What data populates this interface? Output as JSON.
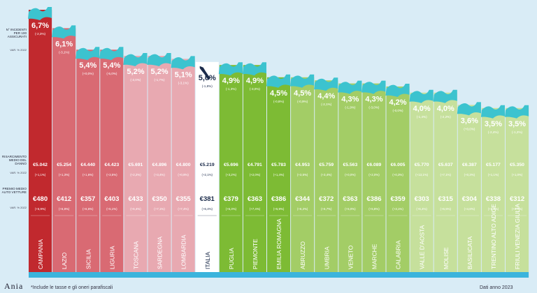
{
  "chart_data": {
    "type": "bar",
    "title": "",
    "xlabel": "",
    "ylabel": "",
    "row_labels": {
      "value": "N° INCIDENTI PER 100 ASSICURATI",
      "change": "VAR. % 2022",
      "cost": "RISARCIMENTO MEDIO DEL DANNO",
      "cost_change": "VAR. % 2022",
      "premium": "PREMIO MEDIO AUTO VETTURE",
      "premium_change": "VAR. % 2022"
    },
    "regions": [
      {
        "name": "CAMPANIA",
        "value": "6,7%",
        "change": "(-2,3%)",
        "cost": "€5.042",
        "cost_change": "(+1,1%)",
        "premium": "€480",
        "premium_change": "(+5,9%)"
      },
      {
        "name": "LAZIO",
        "value": "6,1%",
        "change": "(-3,1%)",
        "cost": "€5.254",
        "cost_change": "(+1,3%)",
        "premium": "€412",
        "premium_change": "(+6,8%)"
      },
      {
        "name": "SICILIA",
        "value": "5,4%",
        "change": "(+0,0%)",
        "cost": "€4.440",
        "cost_change": "(+1,6%)",
        "premium": "€357",
        "premium_change": "(+6,6%)"
      },
      {
        "name": "LIGURIA",
        "value": "5,4%",
        "change": "(-5,0%)",
        "cost": "€4.423",
        "cost_change": "(+3,5%)",
        "premium": "€403",
        "premium_change": "(+5,1%)"
      },
      {
        "name": "TOSCANA",
        "value": "5,2%",
        "change": "(-2,0%)",
        "cost": "€5.691",
        "cost_change": "(+2,2%)",
        "premium": "€433",
        "premium_change": "(+6,4%)"
      },
      {
        "name": "SARDEGNA",
        "value": "5,2%",
        "change": "(-1,7%)",
        "cost": "€4.896",
        "cost_change": "(+3,4%)",
        "premium": "€350",
        "premium_change": "(+7,1%)"
      },
      {
        "name": "LOMBARDIA",
        "value": "5,1%",
        "change": "(-3,1%)",
        "cost": "€4.800",
        "cost_change": "(+0,8%)",
        "premium": "€355",
        "premium_change": "(+7,4%)"
      },
      {
        "name": "ITALIA",
        "value": "5,0%",
        "change": "(-1,8%)",
        "cost": "€5.219",
        "cost_change": "(+2,1%)",
        "premium": "€381",
        "premium_change": "(+6,4%)"
      },
      {
        "name": "PUGLIA",
        "value": "4,9%",
        "change": "(-1,3%)",
        "cost": "€5.696",
        "cost_change": "(+3,2%)",
        "premium": "€379",
        "premium_change": "(+5,3%)"
      },
      {
        "name": "PIEMONTE",
        "value": "4,9%",
        "change": "(-3,0%)",
        "cost": "€4.791",
        "cost_change": "(+2,0%)",
        "premium": "€363",
        "premium_change": "(+7,4%)"
      },
      {
        "name": "EMILIA ROMAGNA",
        "value": "4,5%",
        "change": "(-0,8%)",
        "cost": "€5.783",
        "cost_change": "(+1,4%)",
        "premium": "€386",
        "premium_change": "(+5,9%)"
      },
      {
        "name": "ABRUZZO",
        "value": "4,5%",
        "change": "(-0,9%)",
        "cost": "€4.953",
        "cost_change": "(+3,5%)",
        "premium": "€344",
        "premium_change": "(+6,2%)"
      },
      {
        "name": "UMBRIA",
        "value": "4,4%",
        "change": "(-2,1%)",
        "cost": "€5.759",
        "cost_change": "(+3,4%)",
        "premium": "€372",
        "premium_change": "(+6,7%)"
      },
      {
        "name": "VENETO",
        "value": "4,3%",
        "change": "(-1,9%)",
        "cost": "€5.563",
        "cost_change": "(+0,0%)",
        "premium": "€363",
        "premium_change": "(+5,0%)"
      },
      {
        "name": "MARCHE",
        "value": "4,3%",
        "change": "(-3,0%)",
        "cost": "€6.089",
        "cost_change": "(+2,0%)",
        "premium": "€386",
        "premium_change": "(+5,8%)"
      },
      {
        "name": "CALABRIA",
        "value": "4,2%",
        "change": "(-0,0%)",
        "cost": "€6.005",
        "cost_change": "(+0,3%)",
        "premium": "€359",
        "premium_change": "(+3,1%)"
      },
      {
        "name": "VALLE D'AOSTA",
        "value": "4,0%",
        "change": "(-1,4%)",
        "cost": "€5.770",
        "cost_change": "(+13,1%)",
        "premium": "€303",
        "premium_change": "(+6,4%)"
      },
      {
        "name": "MOLISE",
        "value": "4,0%",
        "change": "(-2,2%)",
        "cost": "€5.637",
        "cost_change": "(+7,1%)",
        "premium": "€315",
        "premium_change": "(+6,5%)"
      },
      {
        "name": "BASILICATA",
        "value": "3,6%",
        "change": "(+0,0%)",
        "cost": "€6.387",
        "cost_change": "(+0,3%)",
        "premium": "€304",
        "premium_change": "(+4,8%)"
      },
      {
        "name": "TRENTINO ALTO ADIGE",
        "value": "3,5%",
        "change": "(-2,4%)",
        "cost": "€5.177",
        "cost_change": "(+1,1%)",
        "premium": "€338",
        "premium_change": "(+5,0%)"
      },
      {
        "name": "FRIULI VENEZIA GIULIA",
        "value": "3,5%",
        "change": "(-1,2%)",
        "cost": "€5.350",
        "cost_change": "(+1,0%)",
        "premium": "€312",
        "premium_change": "(+6,0%)"
      }
    ],
    "colors": {
      "red_dark": "#c1292e",
      "red_mid": "#d96a73",
      "pink": "#e8a9b1",
      "italia": "#ffffff",
      "green_dark": "#7dbb34",
      "green_mid": "#a3cd66",
      "green_light": "#c6e09c",
      "map": "#3cc3cf",
      "base": "#3bb4dc"
    }
  },
  "footer": {
    "brand": "Ania",
    "note": "*Include le tasse e gli oneri parafiscali",
    "source": "Dati anno 2023"
  }
}
